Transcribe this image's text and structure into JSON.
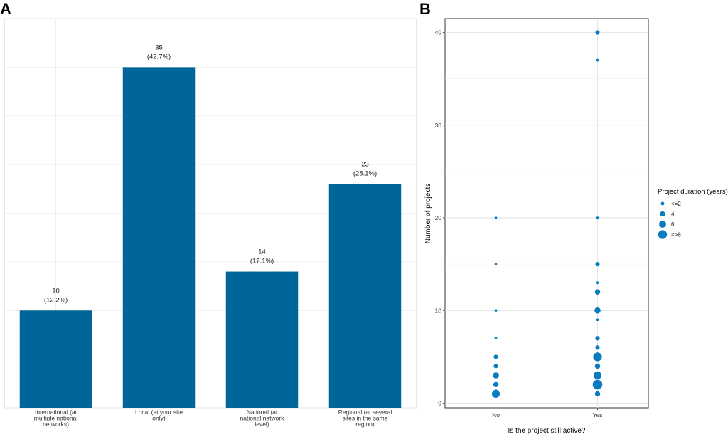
{
  "chart_data": [
    {
      "panel": "A",
      "type": "bar",
      "color": "#006699",
      "categories": [
        [
          "International (at",
          "multiple national",
          "networks)"
        ],
        [
          "Local (at your site",
          "only)"
        ],
        [
          "National (at",
          "national network",
          "level)"
        ],
        [
          "Regional (at several",
          "sites in the same",
          "region)"
        ]
      ],
      "values": [
        10,
        35,
        14,
        23
      ],
      "percent_labels": [
        "(12.2%)",
        "(42.7%)",
        "(17.1%)",
        "(28.1%)"
      ],
      "ylim": [
        0,
        40
      ],
      "grid": true,
      "xlabel": "",
      "ylabel": ""
    },
    {
      "panel": "B",
      "type": "scatter",
      "color": "#0a7bbf",
      "xlabel": "Is the project still active?",
      "ylabel": "Number of projects",
      "x_categories": [
        "No",
        "Yes"
      ],
      "y_ticks": [
        0,
        10,
        20,
        30,
        40
      ],
      "ylim": [
        -0.5,
        41.5
      ],
      "legend": {
        "title": "Project duration (years)",
        "placement": "right",
        "entries": [
          {
            "label": "<=2",
            "size": 2
          },
          {
            "label": "4",
            "size": 4
          },
          {
            "label": "6",
            "size": 6
          },
          {
            "label": "=>8",
            "size": 8
          }
        ]
      },
      "points": [
        {
          "x": "No",
          "y": 20,
          "size": 1
        },
        {
          "x": "No",
          "y": 15,
          "size": 1
        },
        {
          "x": "No",
          "y": 10,
          "size": 1
        },
        {
          "x": "No",
          "y": 7,
          "size": 1
        },
        {
          "x": "No",
          "y": 5,
          "size": 3
        },
        {
          "x": "No",
          "y": 4,
          "size": 3
        },
        {
          "x": "No",
          "y": 3,
          "size": 5
        },
        {
          "x": "No",
          "y": 2,
          "size": 4
        },
        {
          "x": "No",
          "y": 1.3,
          "size": 2
        },
        {
          "x": "No",
          "y": 1,
          "size": 7
        },
        {
          "x": "Yes",
          "y": 40,
          "size": 3
        },
        {
          "x": "Yes",
          "y": 37,
          "size": 1
        },
        {
          "x": "Yes",
          "y": 20,
          "size": 1
        },
        {
          "x": "Yes",
          "y": 15,
          "size": 3
        },
        {
          "x": "Yes",
          "y": 13,
          "size": 1
        },
        {
          "x": "Yes",
          "y": 12,
          "size": 4
        },
        {
          "x": "Yes",
          "y": 10,
          "size": 5
        },
        {
          "x": "Yes",
          "y": 9,
          "size": 1
        },
        {
          "x": "Yes",
          "y": 7,
          "size": 3
        },
        {
          "x": "Yes",
          "y": 6,
          "size": 3
        },
        {
          "x": "Yes",
          "y": 5,
          "size": 8
        },
        {
          "x": "Yes",
          "y": 4,
          "size": 4
        },
        {
          "x": "Yes",
          "y": 3,
          "size": 7
        },
        {
          "x": "Yes",
          "y": 2,
          "size": 9
        },
        {
          "x": "Yes",
          "y": 1,
          "size": 4
        }
      ]
    }
  ],
  "labels": {
    "panel_a": "A",
    "panel_b": "B"
  }
}
